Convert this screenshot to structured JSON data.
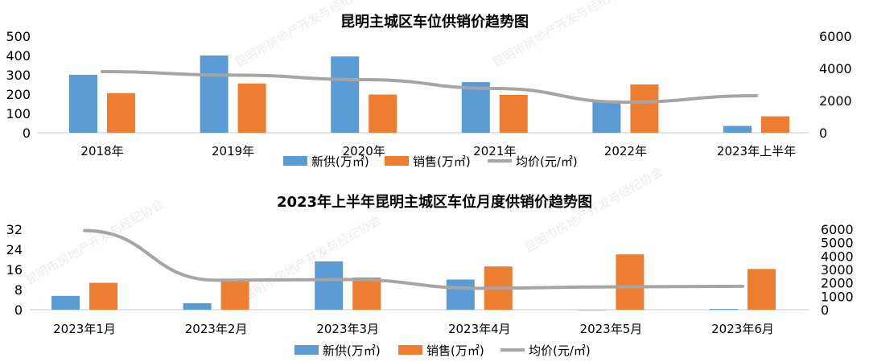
{
  "watermark": "昆明市房地产开发与经纪协会",
  "colors": {
    "supply": "#5B9BD5",
    "sales": "#ED7D31",
    "price": "#A5A5A5",
    "axis": "#D9D9D9",
    "text": "#000000"
  },
  "chart_data": [
    {
      "type": "bar+line",
      "title": "昆明主城区车位供销价趋势图",
      "categories": [
        "2018年",
        "2019年",
        "2020年",
        "2021年",
        "2022年",
        "2023年上半年"
      ],
      "series": [
        {
          "name": "新供(万㎡)",
          "axis": "left",
          "kind": "bar",
          "values": [
            300,
            400,
            395,
            262,
            167,
            35
          ]
        },
        {
          "name": "销售(万㎡)",
          "axis": "left",
          "kind": "bar",
          "values": [
            205,
            255,
            198,
            196,
            250,
            85
          ]
        },
        {
          "name": "均价(元/㎡)",
          "axis": "right",
          "kind": "line",
          "values": [
            3800,
            3580,
            3300,
            2750,
            1900,
            2300
          ]
        }
      ],
      "y_left": {
        "min": 0,
        "max": 500,
        "ticks": [
          "0",
          "100",
          "200",
          "300",
          "400",
          "500"
        ]
      },
      "y_right": {
        "min": 0,
        "max": 6000,
        "ticks": [
          "0",
          "2000",
          "4000",
          "6000"
        ]
      },
      "legend": "bottom",
      "grid": false
    },
    {
      "type": "bar+line",
      "title": "2023年上半年昆明主城区车位月度供销价趋势图",
      "categories": [
        "2023年1月",
        "2023年2月",
        "2023年3月",
        "2023年4月",
        "2023年5月",
        "2023年6月"
      ],
      "series": [
        {
          "name": "新供(万㎡)",
          "axis": "left",
          "kind": "bar",
          "values": [
            5.5,
            2.6,
            19.2,
            12,
            0,
            0.3
          ]
        },
        {
          "name": "销售(万㎡)",
          "axis": "left",
          "kind": "bar",
          "values": [
            10.7,
            11.5,
            12.8,
            17.2,
            22,
            16.2
          ]
        },
        {
          "name": "均价(元/㎡)",
          "axis": "right",
          "kind": "line",
          "values": [
            5900,
            2200,
            2250,
            1600,
            1700,
            1750
          ]
        }
      ],
      "y_left": {
        "min": 0,
        "max": 32,
        "ticks": [
          "0",
          "8",
          "16",
          "24",
          "32"
        ]
      },
      "y_right": {
        "min": 0,
        "max": 6000,
        "ticks": [
          "0",
          "1000",
          "2000",
          "3000",
          "4000",
          "5000",
          "6000"
        ]
      },
      "legend": "bottom",
      "grid": false
    }
  ]
}
